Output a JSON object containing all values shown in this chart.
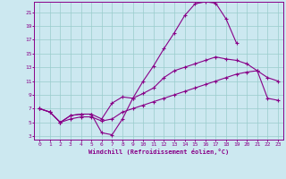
{
  "xlabel": "Windchill (Refroidissement éolien,°C)",
  "bg_color": "#cce8f0",
  "line_color": "#880088",
  "grid_color": "#99cccc",
  "x_ticks": [
    0,
    1,
    2,
    3,
    4,
    5,
    6,
    7,
    8,
    9,
    10,
    11,
    12,
    13,
    14,
    15,
    16,
    17,
    18,
    19,
    20,
    21,
    22,
    23
  ],
  "y_ticks": [
    3,
    5,
    7,
    9,
    11,
    13,
    15,
    17,
    19,
    21
  ],
  "xlim": [
    -0.5,
    23.5
  ],
  "ylim": [
    2.5,
    22.5
  ],
  "series": [
    {
      "x": [
        0,
        1,
        2,
        3,
        4,
        5,
        6,
        7,
        8,
        9,
        10,
        11,
        12,
        13,
        14,
        15,
        16,
        17,
        18,
        19,
        20,
        21,
        22,
        23
      ],
      "y": [
        7.0,
        6.5,
        5.0,
        6.0,
        6.2,
        6.2,
        3.5,
        3.2,
        5.5,
        8.5,
        11.0,
        13.2,
        15.7,
        18.0,
        20.5,
        22.2,
        22.5,
        22.3,
        20.0,
        16.5,
        null,
        null,
        null,
        null
      ]
    },
    {
      "x": [
        0,
        1,
        2,
        3,
        4,
        5,
        6,
        7,
        8,
        9,
        10,
        11,
        12,
        13,
        14,
        15,
        16,
        17,
        18,
        19,
        20,
        21,
        22,
        23
      ],
      "y": [
        7.0,
        6.5,
        5.0,
        6.0,
        6.2,
        6.2,
        5.5,
        7.8,
        8.7,
        8.5,
        9.2,
        10.0,
        11.5,
        12.5,
        13.0,
        13.5,
        14.0,
        14.5,
        14.2,
        14.0,
        13.5,
        12.5,
        11.5,
        11.0
      ]
    },
    {
      "x": [
        0,
        1,
        2,
        3,
        4,
        5,
        6,
        7,
        8,
        9,
        10,
        11,
        12,
        13,
        14,
        15,
        16,
        17,
        18,
        19,
        20,
        21,
        22,
        23
      ],
      "y": [
        7.0,
        6.5,
        5.0,
        5.5,
        5.8,
        5.8,
        5.2,
        5.5,
        6.5,
        7.0,
        7.5,
        8.0,
        8.5,
        9.0,
        9.5,
        10.0,
        10.5,
        11.0,
        11.5,
        12.0,
        12.3,
        12.5,
        8.5,
        8.2
      ]
    }
  ]
}
